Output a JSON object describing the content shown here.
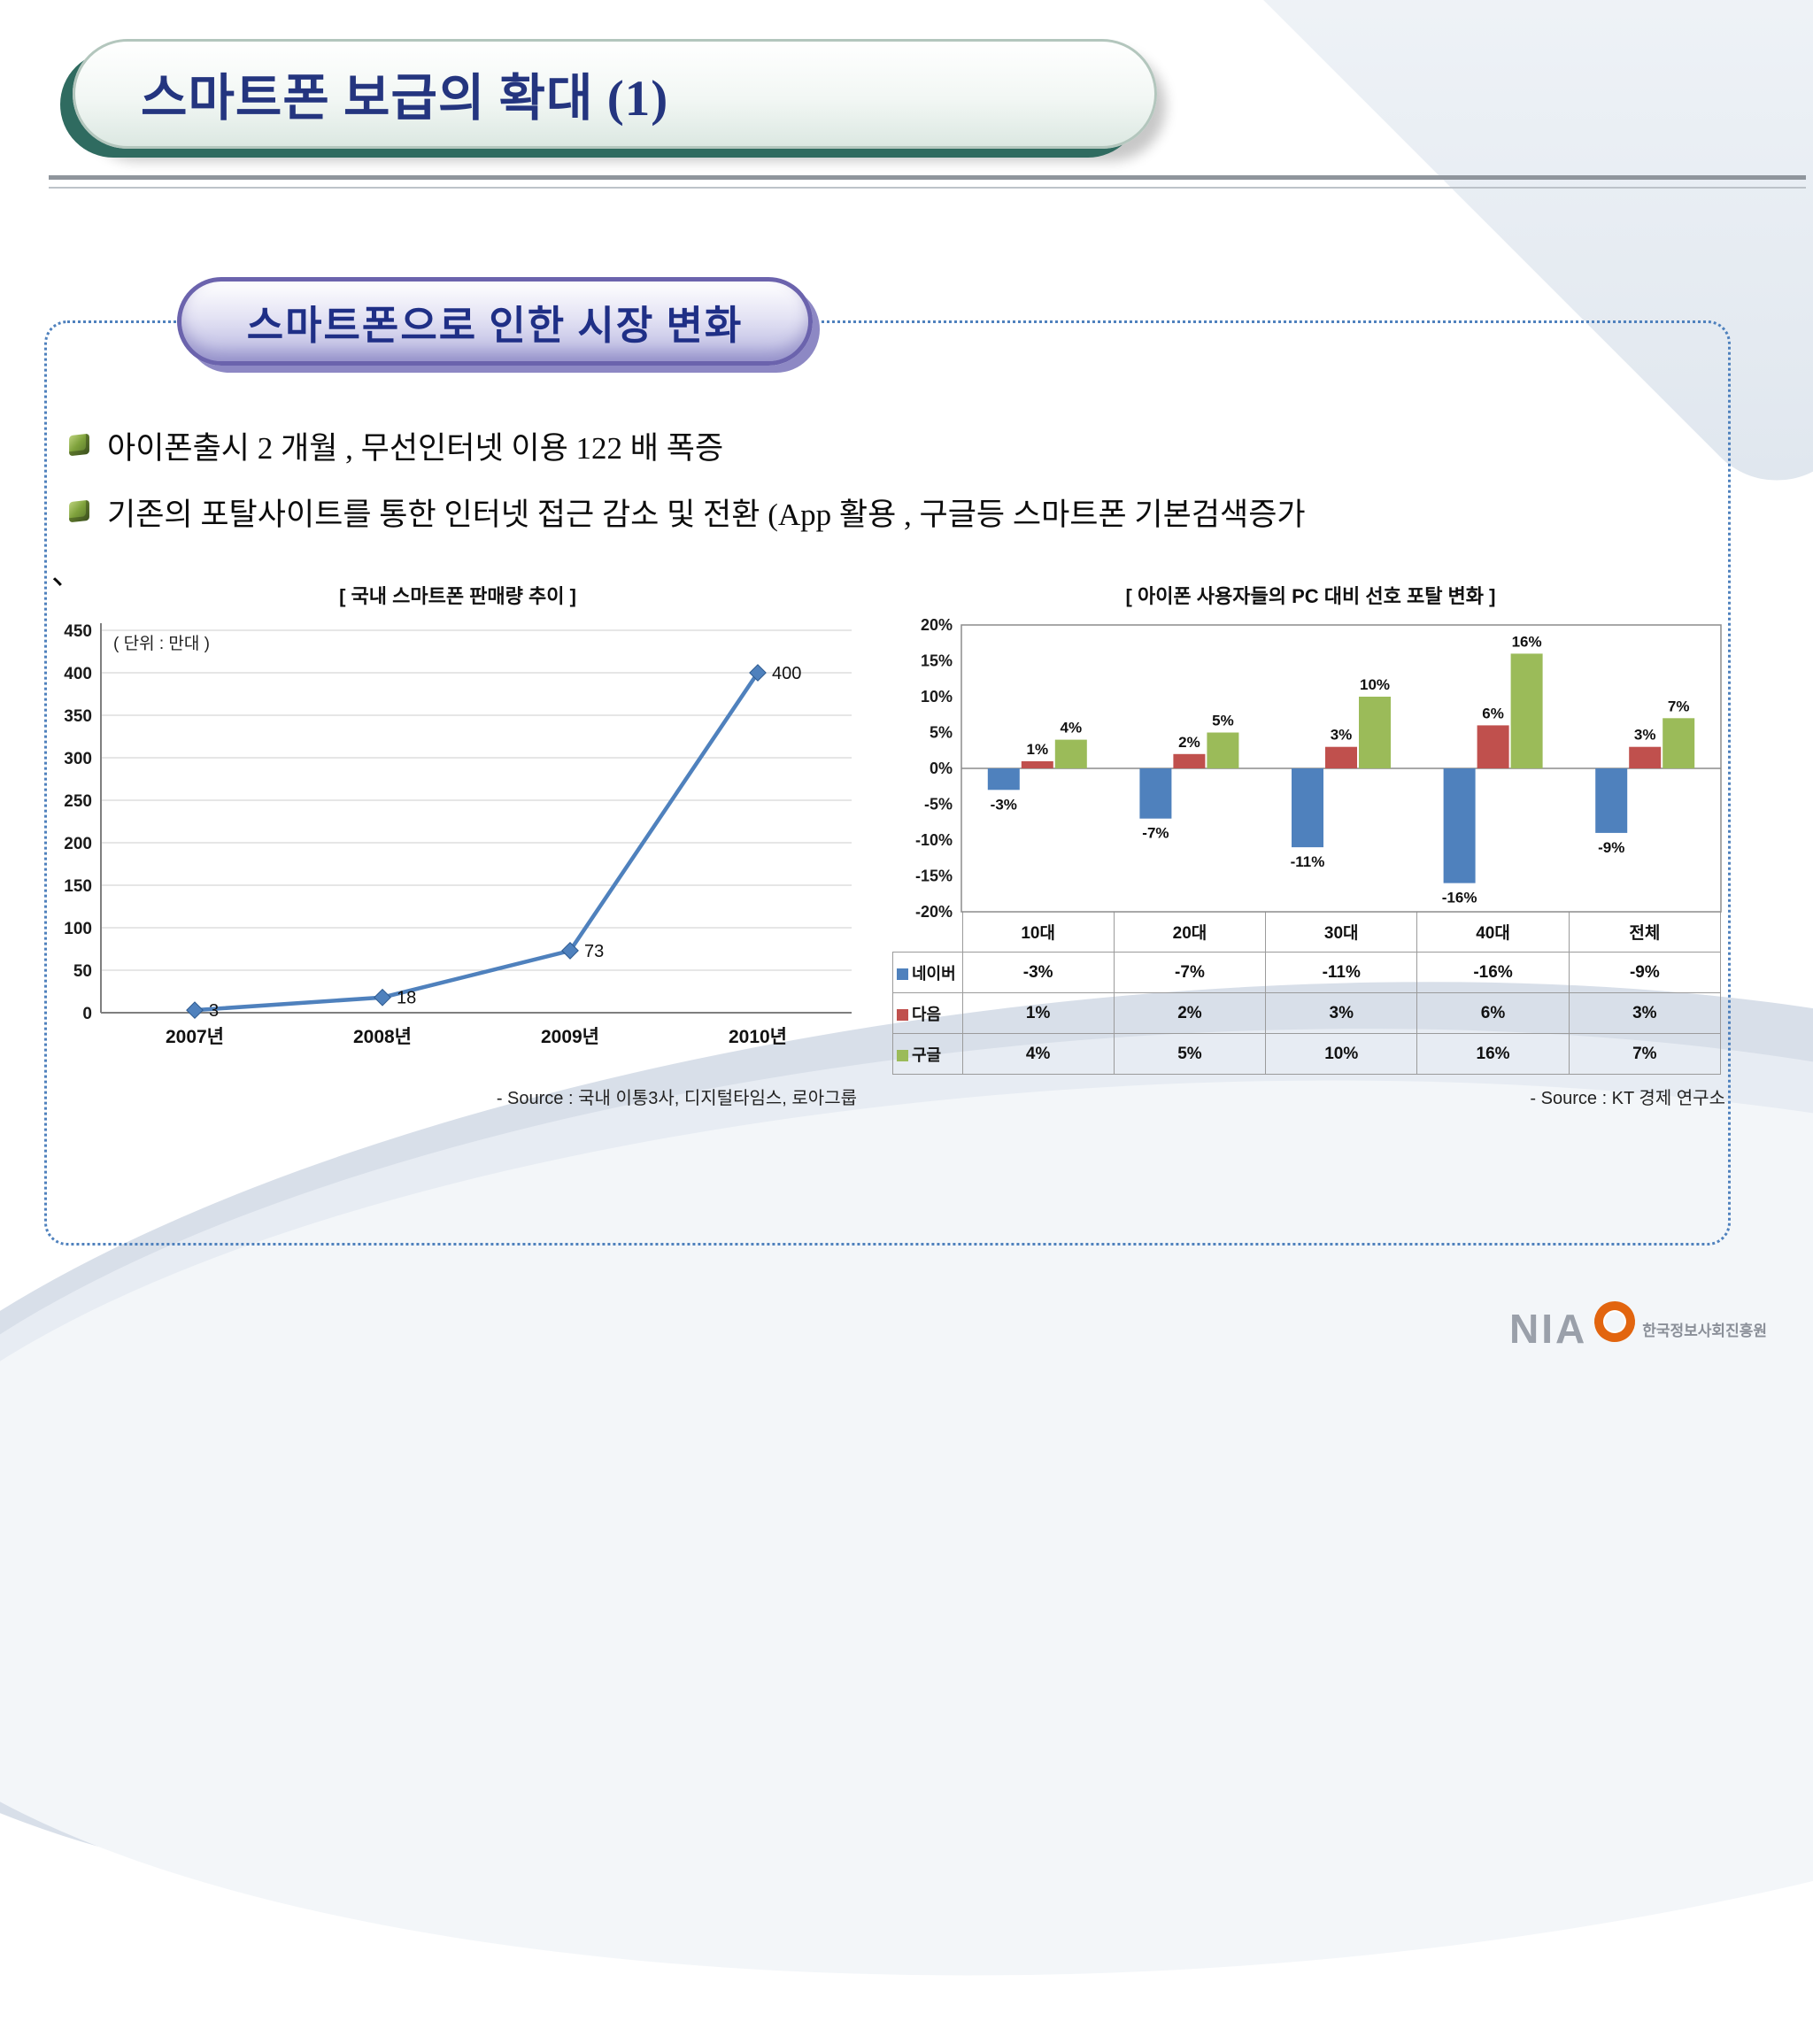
{
  "slide": {
    "title": "스마트폰 보급의 확대 (1)",
    "subtitle": "스마트폰으로 인한 시장 변화",
    "bullets": [
      "아이폰출시  2 개월 ,  무선인터넷 이용 122 배 폭증",
      "기존의 포탈사이트를 통한 인터넷 접근 감소 및 전환 (App 활용 ,  구글등 스마트폰 기본검색증가"
    ],
    "stray_char": "、"
  },
  "footer": {
    "logo_text": "NIA",
    "org_name": "한국정보사회진흥원"
  },
  "chart_data": [
    {
      "type": "line",
      "title": "[ 국내 스마트폰 판매량 추이 ]",
      "unit_label": "( 단위 : 만대 )",
      "categories": [
        "2007년",
        "2008년",
        "2009년",
        "2010년"
      ],
      "values": [
        3,
        18,
        73,
        400
      ],
      "ylim": [
        0,
        450
      ],
      "ytick_step": 50,
      "line_color": "#4F81BD",
      "marker": "diamond",
      "grid": true,
      "source": "- Source : 국내 이통3사, 디지털타임스, 로아그룹"
    },
    {
      "type": "bar",
      "title": "[ 아이폰 사용자들의 PC 대비 선호 포탈 변화 ]",
      "categories": [
        "10대",
        "20대",
        "30대",
        "40대",
        "전체"
      ],
      "series": [
        {
          "name": "네이버",
          "color": "#4F81BD",
          "values": [
            -3,
            -7,
            -11,
            -16,
            -9
          ]
        },
        {
          "name": "다음",
          "color": "#C0504D",
          "values": [
            1,
            2,
            3,
            6,
            3
          ]
        },
        {
          "name": "구글",
          "color": "#9BBB59",
          "values": [
            4,
            5,
            10,
            16,
            7
          ]
        }
      ],
      "ylim": [
        -20,
        20
      ],
      "ytick_step": 5,
      "ytick_suffix": "%",
      "legend_position": "data-table-left",
      "grid": false,
      "source": "- Source : KT 경제 연구소"
    }
  ]
}
